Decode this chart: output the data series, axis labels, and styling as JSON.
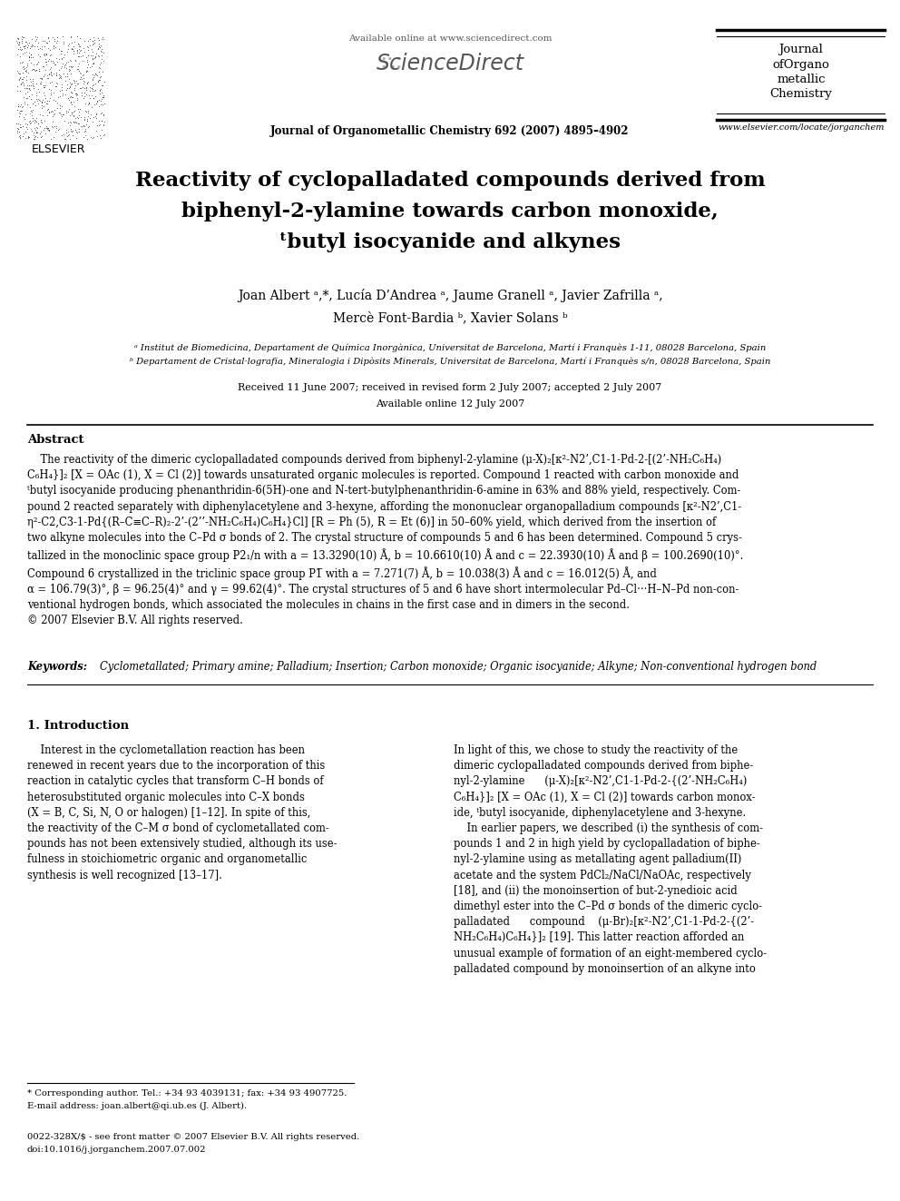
{
  "fig_width": 9.92,
  "fig_height": 13.23,
  "dpi": 100,
  "bg_color": "#ffffff",
  "header": {
    "available_online": "Available online at www.sciencedirect.com",
    "sciencedirect": "ScienceDirect",
    "journal_name": "Journal of Organometallic Chemistry 692 (2007) 4895–4902",
    "journal_right": "Journal\nofOrgano\nmetallic\nChemistry",
    "journal_url": "www.elsevier.com/locate/jorganchem",
    "elsevier": "ELSEVIER"
  },
  "title_lines": [
    "Reactivity of cyclopalladated compounds derived from",
    "biphenyl-2-ylamine towards carbon monoxide,",
    "ᵗbutyl isocyanide and alkynes"
  ],
  "author_lines": [
    "Joan Albert ᵃ,*, Lucía D’Andrea ᵃ, Jaume Granell ᵃ, Javier Zafrilla ᵃ,",
    "Mercè Font-Bardia ᵇ, Xavier Solans ᵇ"
  ],
  "affil_a": "ᵃ Institut de Biomedicina, Departament de Química Inorgànica, Universitat de Barcelona, Martí i Franquès 1-11, 08028 Barcelona, Spain",
  "affil_b": "ᵇ Departament de Cristal·lografia, Mineralogia i Dipòsits Minerals, Universitat de Barcelona, Martí i Franquès s/n, 08028 Barcelona, Spain",
  "date1": "Received 11 June 2007; received in revised form 2 July 2007; accepted 2 July 2007",
  "date2": "Available online 12 July 2007",
  "abstract_header": "Abstract",
  "abstract_text": "    The reactivity of the dimeric cyclopalladated compounds derived from biphenyl-2-ylamine (μ-X)₂[κ²-N2’,C1-1-Pd-2-[(2’-NH₂C₆H₄)\nC₆H₄}]₂ [X = OAc (1), X = Cl (2)] towards unsaturated organic molecules is reported. Compound 1 reacted with carbon monoxide and\nᵗbutyl isocyanide producing phenanthridin-6(5H)-one and N-tert-butylphenanthridin-6-amine in 63% and 88% yield, respectively. Com-\npound 2 reacted separately with diphenylacetylene and 3-hexyne, affording the mononuclear organopalladium compounds [κ²-N2’,C1-\nη²-C2,C3-1-Pd{(R–C≡C–R)₂-2’-(2’’-NH₂C₆H₄)C₆H₄}Cl] [R = Ph (5), R = Et (6)] in 50–60% yield, which derived from the insertion of\ntwo alkyne molecules into the C–Pd σ bonds of 2. The crystal structure of compounds 5 and 6 has been determined. Compound 5 crys-\ntallized in the monoclinic space group P2₁/n with a = 13.3290(10) Å, b = 10.6610(10) Å and c = 22.3930(10) Å and β = 100.2690(10)°.\nCompound 6 crystallized in the triclinic space group P1̅ with a = 7.271(7) Å, b = 10.038(3) Å and c = 16.012(5) Å, and\nα = 106.79(3)°, β = 96.25(4)° and γ = 99.62(4)°. The crystal structures of 5 and 6 have short intermolecular Pd–Cl···H–N–Pd non-con-\nventional hydrogen bonds, which associated the molecules in chains in the first case and in dimers in the second.\n© 2007 Elsevier B.V. All rights reserved.",
  "kw_label": "Keywords: ",
  "kw_text": "Cyclometallated; Primary amine; Palladium; Insertion; Carbon monoxide; Organic isocyanide; Alkyne; Non-conventional hydrogen bond",
  "sec1_header": "1. Introduction",
  "sec1_left": "    Interest in the cyclometallation reaction has been\nrenewed in recent years due to the incorporation of this\nreaction in catalytic cycles that transform C–H bonds of\nheterosubstituted organic molecules into C–X bonds\n(X = B, C, Si, N, O or halogen) [1–12]. In spite of this,\nthe reactivity of the C–M σ bond of cyclometallated com-\npounds has not been extensively studied, although its use-\nfulness in stoichiometric organic and organometallic\nsynthesis is well recognized [13–17].",
  "sec1_right": "In light of this, we chose to study the reactivity of the\ndimeric cyclopalladated compounds derived from biphe-\nnyl-2-ylamine      (μ-X)₂[κ²-N2’,C1-1-Pd-2-{(2’-NH₂C₆H₄)\nC₆H₄}]₂ [X = OAc (1), X = Cl (2)] towards carbon monox-\nide, ᵗbutyl isocyanide, diphenylacetylene and 3-hexyne.\n    In earlier papers, we described (i) the synthesis of com-\npounds 1 and 2 in high yield by cyclopalladation of biphe-\nnyl-2-ylamine using as metallating agent palladium(II)\nacetate and the system PdCl₂/NaCl/NaOAc, respectively\n[18], and (ii) the monoinsertion of but-2-ynedioic acid\ndimethyl ester into the C–Pd σ bonds of the dimeric cyclo-\npalladated      compound    (μ-Br)₂[κ²-N2’,C1-1-Pd-2-{(2’-\nNH₂C₆H₄)C₆H₄}]₂ [19]. This latter reaction afforded an\nunusual example of formation of an eight-membered cyclo-\npalladated compound by monoinsertion of an alkyne into",
  "footnote_star": "* Corresponding author. Tel.: +34 93 4039131; fax: +34 93 4907725.",
  "footnote_email": "E-mail address: joan.albert@qi.ub.es (J. Albert).",
  "issn": "0022-328X/$ - see front matter © 2007 Elsevier B.V. All rights reserved.",
  "doi": "doi:10.1016/j.jorganchem.2007.07.002"
}
